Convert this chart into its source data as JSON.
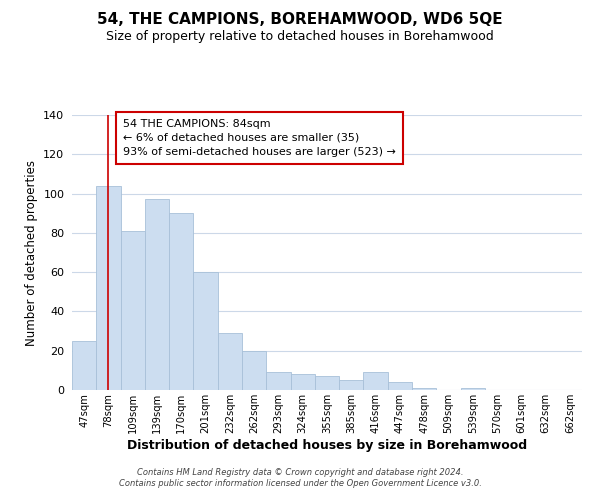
{
  "title": "54, THE CAMPIONS, BOREHAMWOOD, WD6 5QE",
  "subtitle": "Size of property relative to detached houses in Borehamwood",
  "xlabel": "Distribution of detached houses by size in Borehamwood",
  "ylabel": "Number of detached properties",
  "bar_labels": [
    "47sqm",
    "78sqm",
    "109sqm",
    "139sqm",
    "170sqm",
    "201sqm",
    "232sqm",
    "262sqm",
    "293sqm",
    "324sqm",
    "355sqm",
    "385sqm",
    "416sqm",
    "447sqm",
    "478sqm",
    "509sqm",
    "539sqm",
    "570sqm",
    "601sqm",
    "632sqm",
    "662sqm"
  ],
  "bar_values": [
    25,
    104,
    81,
    97,
    90,
    60,
    29,
    20,
    9,
    8,
    7,
    5,
    9,
    4,
    1,
    0,
    1,
    0,
    0,
    0,
    0
  ],
  "bar_color": "#ccddf0",
  "bar_edge_color": "#a8c0d8",
  "ylim": [
    0,
    140
  ],
  "yticks": [
    0,
    20,
    40,
    60,
    80,
    100,
    120,
    140
  ],
  "vline_x": 1,
  "vline_color": "#cc0000",
  "annotation_text": "54 THE CAMPIONS: 84sqm\n← 6% of detached houses are smaller (35)\n93% of semi-detached houses are larger (523) →",
  "annotation_box_color": "#ffffff",
  "annotation_box_edgecolor": "#cc0000",
  "footer_text": "Contains HM Land Registry data © Crown copyright and database right 2024.\nContains public sector information licensed under the Open Government Licence v3.0.",
  "background_color": "#ffffff",
  "grid_color": "#ccd8e8"
}
